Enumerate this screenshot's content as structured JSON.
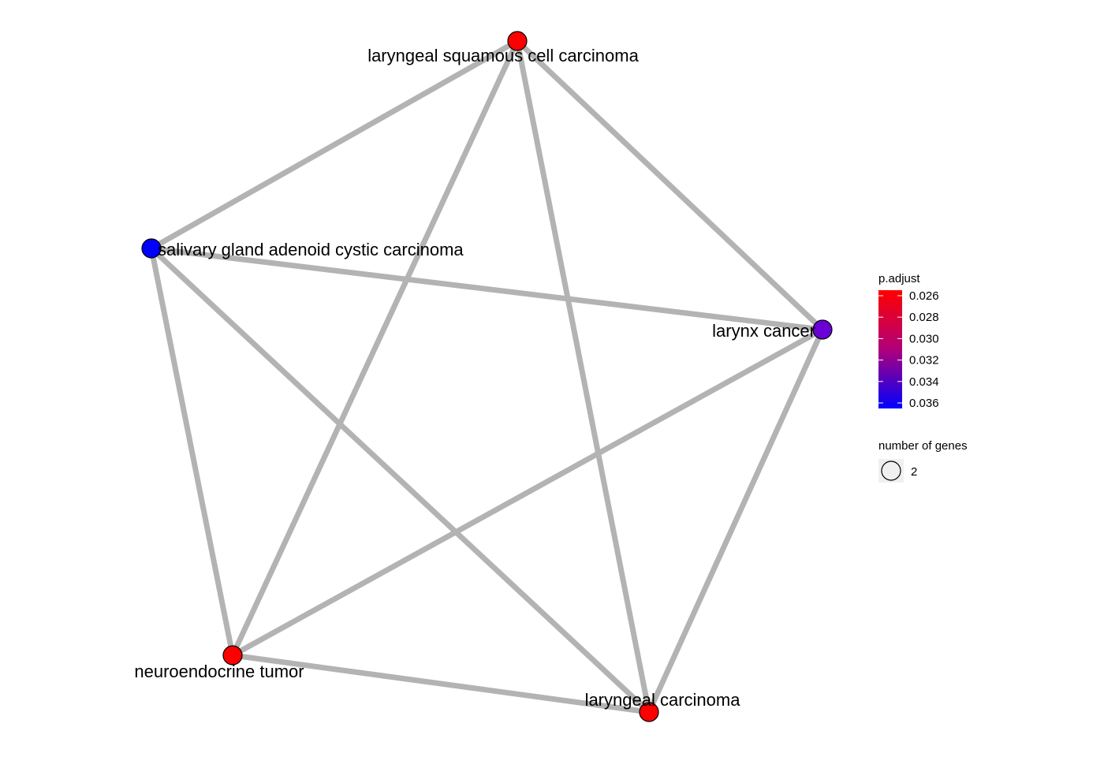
{
  "nodes": [
    {
      "id": "lscc",
      "label": "laryngeal squamous cell carcinoma",
      "color": "#ff0000"
    },
    {
      "id": "sgacc",
      "label": "salivary gland adenoid cystic carcinoma",
      "color": "#0000ff"
    },
    {
      "id": "lc",
      "label": "larynx cancer",
      "color": "#6a00d6"
    },
    {
      "id": "net",
      "label": "neuroendocrine tumor",
      "color": "#ff0000"
    },
    {
      "id": "lca",
      "label": "laryngeal carcinoma",
      "color": "#ff0000"
    }
  ],
  "edges": [
    [
      "lscc",
      "sgacc"
    ],
    [
      "lscc",
      "lc"
    ],
    [
      "lscc",
      "net"
    ],
    [
      "lscc",
      "lca"
    ],
    [
      "sgacc",
      "lc"
    ],
    [
      "sgacc",
      "net"
    ],
    [
      "sgacc",
      "lca"
    ],
    [
      "lc",
      "net"
    ],
    [
      "lc",
      "lca"
    ],
    [
      "net",
      "lca"
    ]
  ],
  "edge_color": "#b3b3b3",
  "legend": {
    "color_title": "p.adjust",
    "color_ticks": [
      "0.026",
      "0.028",
      "0.030",
      "0.032",
      "0.034",
      "0.036"
    ],
    "gradient_top": "#ff0000",
    "gradient_bottom": "#0000ff",
    "size_title": "number of genes",
    "size_value": "2"
  }
}
